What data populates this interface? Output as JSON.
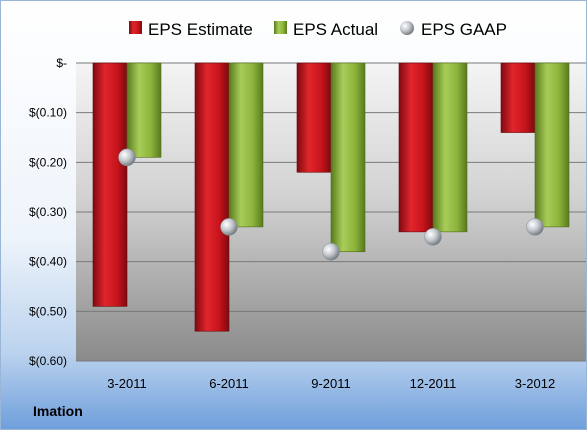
{
  "company": "Imation",
  "colors": {
    "estimate": "#c8141c",
    "actual": "#8db43c",
    "gaap": "#b9bfc6"
  },
  "chart_data": {
    "type": "bar",
    "categories": [
      "3-2011",
      "6-2011",
      "9-2011",
      "12-2011",
      "3-2012"
    ],
    "series": [
      {
        "name": "EPS Estimate",
        "values": [
          -0.49,
          -0.54,
          -0.22,
          -0.34,
          -0.14
        ]
      },
      {
        "name": "EPS Actual",
        "values": [
          -0.19,
          -0.33,
          -0.38,
          -0.34,
          -0.33
        ]
      },
      {
        "name": "EPS GAAP",
        "values": [
          -0.19,
          -0.33,
          -0.38,
          -0.35,
          -0.33
        ],
        "style": "marker"
      }
    ],
    "yticks": [
      0,
      -0.1,
      -0.2,
      -0.3,
      -0.4,
      -0.5,
      -0.6
    ],
    "ytick_labels": [
      "$-",
      "$(0.10)",
      "$(0.20)",
      "$(0.30)",
      "$(0.40)",
      "$(0.50)",
      "$(0.60)"
    ],
    "ylim": [
      -0.6,
      0
    ],
    "legend": "top",
    "grid": true
  }
}
